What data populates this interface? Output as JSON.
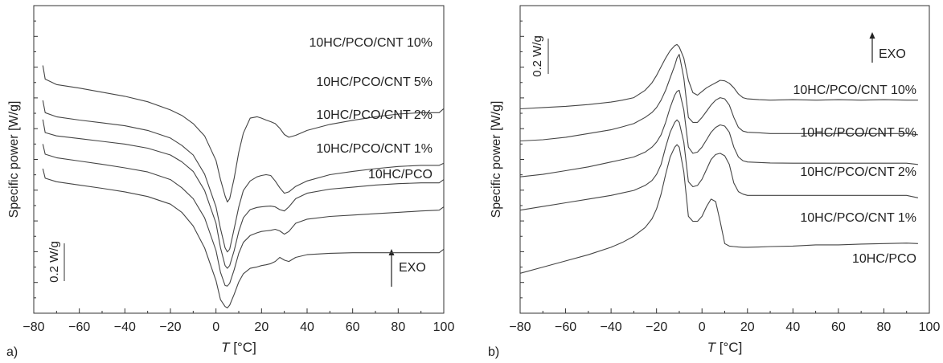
{
  "chart_data": [
    {
      "type": "line",
      "panel_label": "a)",
      "xlabel_italic": "T",
      "xlabel_unit": " [°C]",
      "ylabel": "Specific power [W/g]",
      "xlim": [
        -80,
        100
      ],
      "xticks": [
        "−80",
        "−60",
        "−40",
        "−20",
        "0",
        "20",
        "40",
        "60",
        "80",
        "100"
      ],
      "xtick_values": [
        -80,
        -60,
        -40,
        -20,
        0,
        20,
        40,
        60,
        80,
        100
      ],
      "scale_bar": "0.2 W/g",
      "exo_label": "EXO",
      "ylim": [
        0,
        1
      ],
      "series": [
        {
          "name": "10HC/PCO/CNT 10%",
          "x": [
            -76,
            -75,
            -70,
            -60,
            -50,
            -40,
            -30,
            -20,
            -15,
            -10,
            -5,
            0,
            2,
            4,
            5,
            6,
            8,
            10,
            12,
            15,
            18,
            20,
            22,
            24,
            26,
            28,
            30,
            32,
            35,
            40,
            50,
            60,
            70,
            80,
            90,
            98,
            100
          ],
          "y": [
            0.878,
            0.828,
            0.808,
            0.795,
            0.78,
            0.765,
            0.745,
            0.715,
            0.695,
            0.665,
            0.62,
            0.53,
            0.46,
            0.4,
            0.378,
            0.39,
            0.465,
            0.56,
            0.63,
            0.685,
            0.69,
            0.685,
            0.678,
            0.672,
            0.665,
            0.648,
            0.625,
            0.615,
            0.622,
            0.64,
            0.662,
            0.677,
            0.69,
            0.7,
            0.705,
            0.705,
            0.72
          ]
        },
        {
          "name": "10HC/PCO/CNT 5%",
          "x": [
            -76,
            -75,
            -70,
            -60,
            -50,
            -40,
            -30,
            -20,
            -15,
            -10,
            -5,
            0,
            2,
            4,
            5,
            6,
            8,
            10,
            12,
            15,
            18,
            20,
            22,
            24,
            26,
            28,
            30,
            32,
            35,
            40,
            50,
            60,
            70,
            80,
            90,
            98,
            100
          ],
          "y": [
            0.75,
            0.705,
            0.69,
            0.678,
            0.668,
            0.657,
            0.64,
            0.612,
            0.585,
            0.55,
            0.48,
            0.36,
            0.28,
            0.21,
            0.195,
            0.205,
            0.28,
            0.36,
            0.42,
            0.455,
            0.47,
            0.475,
            0.478,
            0.475,
            0.455,
            0.43,
            0.41,
            0.415,
            0.435,
            0.455,
            0.478,
            0.49,
            0.5,
            0.508,
            0.512,
            0.512,
            0.52
          ]
        },
        {
          "name": "10HC/PCO/CNT 2%",
          "x": [
            -76,
            -75,
            -70,
            -60,
            -50,
            -40,
            -30,
            -20,
            -15,
            -10,
            -5,
            0,
            2,
            4,
            5,
            6,
            8,
            10,
            12,
            15,
            18,
            20,
            22,
            24,
            26,
            28,
            30,
            32,
            35,
            40,
            50,
            60,
            70,
            80,
            90,
            98,
            100
          ],
          "y": [
            0.68,
            0.632,
            0.62,
            0.61,
            0.6,
            0.59,
            0.575,
            0.55,
            0.525,
            0.49,
            0.42,
            0.3,
            0.21,
            0.145,
            0.135,
            0.145,
            0.2,
            0.27,
            0.32,
            0.35,
            0.358,
            0.36,
            0.362,
            0.363,
            0.36,
            0.35,
            0.345,
            0.36,
            0.39,
            0.41,
            0.425,
            0.432,
            0.44,
            0.445,
            0.448,
            0.448,
            0.46
          ]
        },
        {
          "name": "10HC/PCO/CNT 1%",
          "x": [
            -76,
            -75,
            -70,
            -60,
            -50,
            -40,
            -30,
            -20,
            -15,
            -10,
            -5,
            0,
            2,
            4,
            5,
            6,
            8,
            10,
            12,
            15,
            18,
            20,
            22,
            24,
            26,
            28,
            30,
            32,
            35,
            40,
            50,
            60,
            70,
            80,
            90,
            98,
            100
          ],
          "y": [
            0.59,
            0.553,
            0.54,
            0.528,
            0.516,
            0.503,
            0.488,
            0.46,
            0.43,
            0.39,
            0.32,
            0.2,
            0.12,
            0.072,
            0.07,
            0.08,
            0.13,
            0.19,
            0.23,
            0.255,
            0.265,
            0.27,
            0.272,
            0.274,
            0.278,
            0.272,
            0.26,
            0.27,
            0.3,
            0.315,
            0.325,
            0.33,
            0.335,
            0.34,
            0.345,
            0.348,
            0.36
          ]
        },
        {
          "name": "10HC/PCO",
          "x": [
            -76,
            -75,
            -70,
            -60,
            -50,
            -40,
            -30,
            -20,
            -15,
            -10,
            -5,
            0,
            2,
            4,
            5,
            6,
            8,
            10,
            12,
            15,
            18,
            20,
            22,
            24,
            26,
            28,
            30,
            32,
            35,
            40,
            50,
            60,
            70,
            80,
            90,
            98,
            100
          ],
          "y": [
            0.5,
            0.465,
            0.452,
            0.44,
            0.428,
            0.415,
            0.398,
            0.37,
            0.34,
            0.29,
            0.21,
            0.09,
            0.02,
            -0.005,
            -0.01,
            0.0,
            0.04,
            0.085,
            0.115,
            0.135,
            0.14,
            0.145,
            0.148,
            0.152,
            0.16,
            0.175,
            0.165,
            0.16,
            0.175,
            0.185,
            0.19,
            0.192,
            0.192,
            0.192,
            0.192,
            0.192,
            0.205
          ]
        }
      ]
    },
    {
      "type": "line",
      "panel_label": "b)",
      "xlabel_italic": "T",
      "xlabel_unit": " [°C]",
      "ylabel": "Specific power [W/g]",
      "xlim": [
        -80,
        100
      ],
      "xticks": [
        "−80",
        "−60",
        "−40",
        "−20",
        "0",
        "20",
        "40",
        "60",
        "80",
        "100"
      ],
      "xtick_values": [
        -80,
        -60,
        -40,
        -20,
        0,
        20,
        40,
        60,
        80,
        100
      ],
      "scale_bar": "0.2 W/g",
      "exo_label": "EXO",
      "ylim": [
        0,
        1
      ],
      "series": [
        {
          "name": "10HC/PCO/CNT 10%",
          "x": [
            -80,
            -70,
            -60,
            -50,
            -40,
            -35,
            -30,
            -25,
            -22,
            -20,
            -18,
            -16,
            -14,
            -12,
            -11,
            -10,
            -8,
            -6,
            -4,
            -2,
            0,
            2,
            4,
            6,
            8,
            10,
            12,
            14,
            16,
            18,
            20,
            25,
            30,
            40,
            50,
            60,
            70,
            80,
            90,
            95
          ],
          "y": [
            0.755,
            0.76,
            0.765,
            0.772,
            0.782,
            0.79,
            0.8,
            0.83,
            0.86,
            0.89,
            0.925,
            0.96,
            0.99,
            1.01,
            1.015,
            1.005,
            0.96,
            0.87,
            0.82,
            0.81,
            0.825,
            0.84,
            0.85,
            0.86,
            0.87,
            0.868,
            0.858,
            0.84,
            0.815,
            0.8,
            0.795,
            0.792,
            0.79,
            0.792,
            0.79,
            0.792,
            0.79,
            0.792,
            0.79,
            0.79
          ]
        },
        {
          "name": "10HC/PCO/CNT 5%",
          "x": [
            -80,
            -70,
            -60,
            -50,
            -40,
            -35,
            -30,
            -25,
            -22,
            -20,
            -18,
            -16,
            -14,
            -12,
            -11,
            -10,
            -8,
            -6,
            -4,
            -2,
            0,
            2,
            4,
            6,
            8,
            10,
            12,
            14,
            16,
            18,
            20,
            25,
            30,
            40,
            50,
            60,
            70,
            80,
            90,
            95
          ],
          "y": [
            0.625,
            0.63,
            0.64,
            0.655,
            0.67,
            0.682,
            0.695,
            0.72,
            0.74,
            0.76,
            0.79,
            0.83,
            0.88,
            0.93,
            0.96,
            0.975,
            0.88,
            0.72,
            0.7,
            0.7,
            0.72,
            0.745,
            0.77,
            0.79,
            0.8,
            0.795,
            0.77,
            0.72,
            0.68,
            0.665,
            0.66,
            0.658,
            0.655,
            0.655,
            0.655,
            0.655,
            0.655,
            0.655,
            0.655,
            0.65
          ]
        },
        {
          "name": "10HC/PCO/CNT 2%",
          "x": [
            -80,
            -70,
            -60,
            -50,
            -40,
            -35,
            -30,
            -25,
            -22,
            -20,
            -18,
            -16,
            -14,
            -12,
            -11,
            -10,
            -8,
            -6,
            -4,
            -2,
            0,
            2,
            4,
            6,
            8,
            10,
            12,
            14,
            16,
            18,
            20,
            25,
            30,
            40,
            50,
            60,
            70,
            80,
            90,
            95
          ],
          "y": [
            0.48,
            0.49,
            0.505,
            0.52,
            0.54,
            0.55,
            0.56,
            0.58,
            0.6,
            0.62,
            0.65,
            0.7,
            0.76,
            0.81,
            0.825,
            0.83,
            0.75,
            0.6,
            0.575,
            0.58,
            0.6,
            0.63,
            0.66,
            0.68,
            0.69,
            0.685,
            0.66,
            0.6,
            0.56,
            0.545,
            0.54,
            0.538,
            0.536,
            0.535,
            0.535,
            0.535,
            0.535,
            0.535,
            0.535,
            0.53
          ]
        },
        {
          "name": "10HC/PCO/CNT 1%",
          "x": [
            -80,
            -70,
            -60,
            -50,
            -40,
            -35,
            -30,
            -25,
            -22,
            -20,
            -18,
            -16,
            -14,
            -12,
            -11,
            -10,
            -8,
            -6,
            -4,
            -2,
            0,
            2,
            4,
            6,
            8,
            10,
            12,
            14,
            16,
            18,
            20,
            25,
            30,
            40,
            50,
            60,
            70,
            80,
            90,
            95
          ],
          "y": [
            0.345,
            0.36,
            0.375,
            0.39,
            0.405,
            0.415,
            0.425,
            0.445,
            0.465,
            0.49,
            0.53,
            0.6,
            0.66,
            0.7,
            0.71,
            0.7,
            0.62,
            0.46,
            0.44,
            0.445,
            0.47,
            0.51,
            0.55,
            0.57,
            0.575,
            0.565,
            0.53,
            0.455,
            0.42,
            0.41,
            0.405,
            0.405,
            0.405,
            0.405,
            0.405,
            0.405,
            0.405,
            0.405,
            0.405,
            0.395
          ]
        },
        {
          "name": "10HC/PCO",
          "x": [
            -80,
            -70,
            -60,
            -50,
            -40,
            -35,
            -30,
            -25,
            -22,
            -20,
            -18,
            -16,
            -14,
            -12,
            -11,
            -10,
            -8,
            -6,
            -4,
            -2,
            0,
            2,
            4,
            6,
            8,
            10,
            12,
            14,
            16,
            18,
            20,
            25,
            30,
            40,
            50,
            60,
            70,
            80,
            90,
            95
          ],
          "y": [
            0.09,
            0.115,
            0.14,
            0.165,
            0.195,
            0.215,
            0.24,
            0.275,
            0.31,
            0.35,
            0.41,
            0.49,
            0.56,
            0.6,
            0.61,
            0.6,
            0.5,
            0.32,
            0.3,
            0.3,
            0.32,
            0.36,
            0.39,
            0.38,
            0.3,
            0.21,
            0.2,
            0.198,
            0.196,
            0.195,
            0.195,
            0.196,
            0.198,
            0.2,
            0.205,
            0.205,
            0.208,
            0.21,
            0.212,
            0.21
          ]
        }
      ]
    }
  ]
}
